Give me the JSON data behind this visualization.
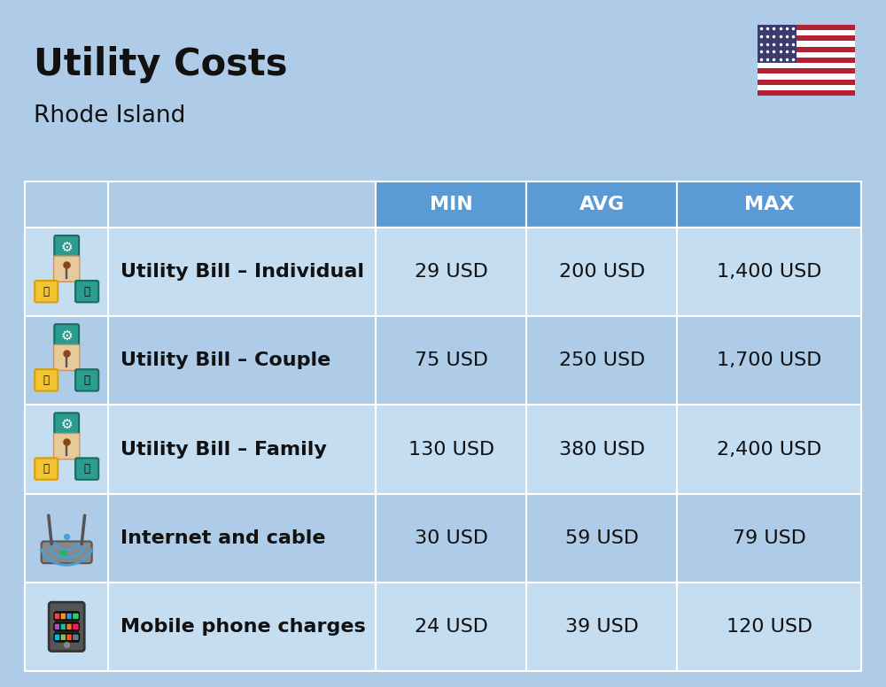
{
  "title": "Utility Costs",
  "subtitle": "Rhode Island",
  "background_color": "#aecce8",
  "header_color": "#5b9bd5",
  "header_text_color": "#ffffff",
  "row_color_light": "#c5ddf0",
  "row_color_dark": "#aecce8",
  "text_color": "#111111",
  "header_labels": [
    "MIN",
    "AVG",
    "MAX"
  ],
  "rows": [
    {
      "label": "Utility Bill – Individual",
      "min": "29 USD",
      "avg": "200 USD",
      "max": "1,400 USD",
      "icon": "utility"
    },
    {
      "label": "Utility Bill – Couple",
      "min": "75 USD",
      "avg": "250 USD",
      "max": "1,700 USD",
      "icon": "utility"
    },
    {
      "label": "Utility Bill – Family",
      "min": "130 USD",
      "avg": "380 USD",
      "max": "2,400 USD",
      "icon": "utility"
    },
    {
      "label": "Internet and cable",
      "min": "30 USD",
      "avg": "59 USD",
      "max": "79 USD",
      "icon": "internet"
    },
    {
      "label": "Mobile phone charges",
      "min": "24 USD",
      "avg": "39 USD",
      "max": "120 USD",
      "icon": "phone"
    }
  ],
  "title_fontsize": 30,
  "subtitle_fontsize": 19,
  "header_fontsize": 16,
  "cell_fontsize": 16,
  "label_fontsize": 16
}
